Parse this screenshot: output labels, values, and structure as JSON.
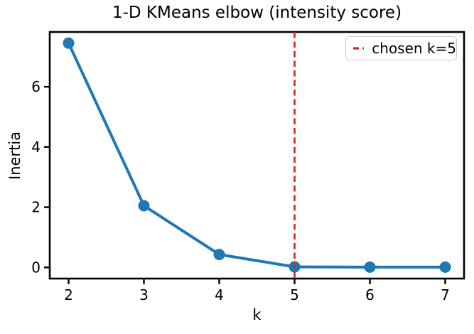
{
  "window": {
    "kind": "matplotlib-figure",
    "background": "#ffffff"
  },
  "colors": {
    "line": "#1f77b4",
    "marker": "#1f77b4",
    "vline": "#d62728",
    "axis": "#000000",
    "legend_border": "#cccccc",
    "background": "#ffffff"
  },
  "legend": {
    "label": "chosen k=5",
    "position": "upper right"
  },
  "chart_data": {
    "type": "line",
    "title": "1-D KMeans elbow (intensity score)",
    "xlabel": "k",
    "ylabel": "Inertia",
    "x": [
      2,
      3,
      4,
      5,
      6,
      7
    ],
    "series": [
      {
        "name": "inertia",
        "values": [
          7.45,
          2.05,
          0.43,
          0.02,
          0.01,
          0.01
        ],
        "color": "#1f77b4",
        "marker": "o",
        "linewidth": 3
      }
    ],
    "xticks": [
      2,
      3,
      4,
      5,
      6,
      7
    ],
    "yticks": [
      0,
      2,
      4,
      6
    ],
    "xlim": [
      1.75,
      7.25
    ],
    "ylim": [
      -0.37,
      7.82
    ],
    "grid": false,
    "legend_position": "upper right",
    "vline": {
      "x": 5,
      "label": "chosen k=5",
      "color": "#d62728",
      "style": "dashed"
    }
  }
}
